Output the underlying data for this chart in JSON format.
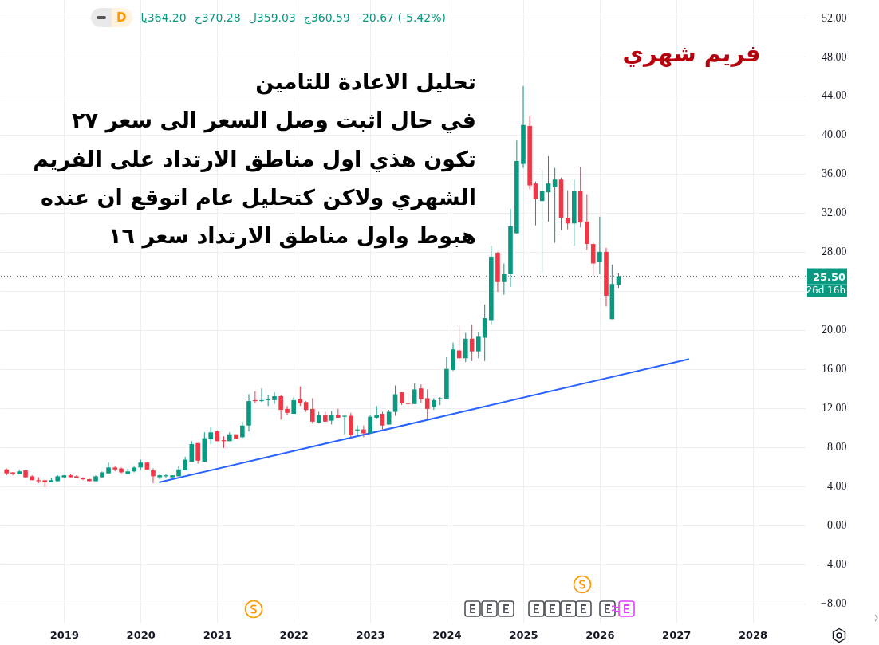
{
  "chart_data": {
    "type": "candlestick",
    "title": "فريم شهري",
    "subtitle": "تحليل الاعادة للتامين\nفي حال اثبت وصل السعر الى سعر ٢٧\nتكون هذي اول مناطق الارتداد على الفريم\nالشهري ولاكن كتحليل عام اتوقع ان عنده\nهبوط واول مناطق الارتداد سعر ١٦",
    "annotations": [
      "D",
      "364.20يا",
      "370.28ح",
      "359.03ل",
      "360.59ج",
      "-20.67 (-5.42%)",
      "26d 16h"
    ],
    "series": [
      {
        "type": "line",
        "color": "#2962ff",
        "x": [
          "2020-04",
          "2027-03"
        ],
        "values": [
          4.4,
          17.0
        ]
      },
      {
        "type": "candlestick",
        "x": [
          "2018-04",
          "2018-05",
          "2018-06",
          "2018-07",
          "2018-08",
          "2018-09",
          "2018-10",
          "2018-11",
          "2018-12",
          "2019-01",
          "2019-02",
          "2019-03",
          "2019-04",
          "2019-05",
          "2019-06",
          "2019-07",
          "2019-08",
          "2019-09",
          "2019-10",
          "2019-11",
          "2019-12",
          "2020-01",
          "2020-02",
          "2020-03",
          "2020-04",
          "2020-05",
          "2020-06",
          "2020-07",
          "2020-08",
          "2020-09",
          "2020-10",
          "2020-11",
          "2020-12",
          "2021-01",
          "2021-02",
          "2021-03",
          "2021-04",
          "2021-05",
          "2021-06",
          "2021-07",
          "2021-08",
          "2021-09",
          "2021-10",
          "2021-11",
          "2021-12",
          "2022-01",
          "2022-02",
          "2022-03",
          "2022-04",
          "2022-05",
          "2022-06",
          "2022-07",
          "2022-08",
          "2022-09",
          "2022-10",
          "2022-11",
          "2022-12",
          "2023-01",
          "2023-02",
          "2023-03",
          "2023-04",
          "2023-05",
          "2023-06",
          "2023-07",
          "2023-08",
          "2023-09",
          "2023-10",
          "2023-11",
          "2023-12",
          "2024-01",
          "2024-02",
          "2024-03",
          "2024-04",
          "2024-05",
          "2024-06",
          "2024-07",
          "2024-08",
          "2024-09",
          "2024-10",
          "2024-11",
          "2024-12",
          "2025-01",
          "2025-02",
          "2025-03",
          "2025-04",
          "2025-05",
          "2025-06",
          "2025-07",
          "2025-08",
          "2025-09",
          "2025-10",
          "2025-11",
          "2025-12",
          "2026-01",
          "2026-02",
          "2026-03",
          "2026-04"
        ],
        "ohlc": [
          [
            5.7,
            5.8,
            5.1,
            5.3
          ],
          [
            5.4,
            5.4,
            5.1,
            5.2
          ],
          [
            5.2,
            5.7,
            5.2,
            5.5
          ],
          [
            5.6,
            5.6,
            4.8,
            4.9
          ],
          [
            5.0,
            5.1,
            4.6,
            4.6
          ],
          [
            4.6,
            4.9,
            4.3,
            4.5
          ],
          [
            4.6,
            4.6,
            3.9,
            4.4
          ],
          [
            4.4,
            4.8,
            4.4,
            4.6
          ],
          [
            4.5,
            5.1,
            4.5,
            5.0
          ],
          [
            4.9,
            5.1,
            4.8,
            5.1
          ],
          [
            5.1,
            5.2,
            4.9,
            4.9
          ],
          [
            5.0,
            5.1,
            4.8,
            4.8
          ],
          [
            4.8,
            4.9,
            4.6,
            4.7
          ],
          [
            4.7,
            4.8,
            4.4,
            4.5
          ],
          [
            4.5,
            5.1,
            4.5,
            5.0
          ],
          [
            4.9,
            5.5,
            4.9,
            5.4
          ],
          [
            5.3,
            6.4,
            5.3,
            5.9
          ],
          [
            5.9,
            6.1,
            5.5,
            5.7
          ],
          [
            5.8,
            5.9,
            5.3,
            5.4
          ],
          [
            5.2,
            5.8,
            5.2,
            5.5
          ],
          [
            5.5,
            6.0,
            5.4,
            5.9
          ],
          [
            5.9,
            6.7,
            5.6,
            6.4
          ],
          [
            6.4,
            6.4,
            5.7,
            5.7
          ],
          [
            5.6,
            5.8,
            4.3,
            5.0
          ],
          [
            4.9,
            5.2,
            4.7,
            5.1
          ],
          [
            5.0,
            5.2,
            4.8,
            5.1
          ],
          [
            4.9,
            5.1,
            4.9,
            5.1
          ],
          [
            5.0,
            6.1,
            5.0,
            5.7
          ],
          [
            5.6,
            7.0,
            5.6,
            6.7
          ],
          [
            6.5,
            8.6,
            6.5,
            8.3
          ],
          [
            8.4,
            8.4,
            6.3,
            6.6
          ],
          [
            6.5,
            9.5,
            6.5,
            8.9
          ],
          [
            8.8,
            10.0,
            8.3,
            9.5
          ],
          [
            9.6,
            9.7,
            8.6,
            8.6
          ],
          [
            8.7,
            9.1,
            7.9,
            8.6
          ],
          [
            8.6,
            9.5,
            8.6,
            9.3
          ],
          [
            9.3,
            9.3,
            8.8,
            8.8
          ],
          [
            9.0,
            10.6,
            8.9,
            10.2
          ],
          [
            10.2,
            13.4,
            9.6,
            12.7
          ],
          [
            12.8,
            13.7,
            12.5,
            12.7
          ],
          [
            12.7,
            14.0,
            12.6,
            12.8
          ],
          [
            12.8,
            13.3,
            12.2,
            12.9
          ],
          [
            12.8,
            13.6,
            12.4,
            13.2
          ],
          [
            13.2,
            13.3,
            10.8,
            11.8
          ],
          [
            11.9,
            12.2,
            11.3,
            11.5
          ],
          [
            11.4,
            13.1,
            11.4,
            12.8
          ],
          [
            12.9,
            14.2,
            12.2,
            12.5
          ],
          [
            12.6,
            12.7,
            11.6,
            11.8
          ],
          [
            11.9,
            13.0,
            10.4,
            10.6
          ],
          [
            10.5,
            11.6,
            10.4,
            11.3
          ],
          [
            11.3,
            11.6,
            10.6,
            10.6
          ],
          [
            10.7,
            11.7,
            10.3,
            11.3
          ],
          [
            11.3,
            11.9,
            11.0,
            11.0
          ],
          [
            11.1,
            11.2,
            9.3,
            11.2
          ],
          [
            11.2,
            11.5,
            9.0,
            9.2
          ],
          [
            9.7,
            10.2,
            9.1,
            9.8
          ],
          [
            9.8,
            10.2,
            9.0,
            9.4
          ],
          [
            9.4,
            11.3,
            9.4,
            11.1
          ],
          [
            11.0,
            12.2,
            10.9,
            11.3
          ],
          [
            11.4,
            11.6,
            9.8,
            10.2
          ],
          [
            10.3,
            11.8,
            10.3,
            11.6
          ],
          [
            11.6,
            14.3,
            11.2,
            13.4
          ],
          [
            13.6,
            13.6,
            12.3,
            12.5
          ],
          [
            12.5,
            13.9,
            12.0,
            12.4
          ],
          [
            12.4,
            14.5,
            12.4,
            13.9
          ],
          [
            14.0,
            14.4,
            12.5,
            12.9
          ],
          [
            13.0,
            13.9,
            10.9,
            11.9
          ],
          [
            12.1,
            13.0,
            11.8,
            12.8
          ],
          [
            12.9,
            13.1,
            12.3,
            13.0
          ],
          [
            12.9,
            17.2,
            12.9,
            16.0
          ],
          [
            15.9,
            18.7,
            15.8,
            18.0
          ],
          [
            17.9,
            20.4,
            16.8,
            17.1
          ],
          [
            17.1,
            19.7,
            16.7,
            19.1
          ],
          [
            19.1,
            20.5,
            16.8,
            17.8
          ],
          [
            17.8,
            19.8,
            17.1,
            19.3
          ],
          [
            19.2,
            22.6,
            16.8,
            21.2
          ],
          [
            21.0,
            28.6,
            20.5,
            27.5
          ],
          [
            27.9,
            28.0,
            23.9,
            24.9
          ],
          [
            24.9,
            26.8,
            23.6,
            25.7
          ],
          [
            25.7,
            32.4,
            24.4,
            30.6
          ],
          [
            29.9,
            39.4,
            29.9,
            37.3
          ],
          [
            37.0,
            45.0,
            36.6,
            41.0
          ],
          [
            40.9,
            41.9,
            34.4,
            34.8
          ],
          [
            35.0,
            35.2,
            30.7,
            33.4
          ],
          [
            33.2,
            36.4,
            25.9,
            34.2
          ],
          [
            34.1,
            37.8,
            31.1,
            35.0
          ],
          [
            34.6,
            36.6,
            28.9,
            35.4
          ],
          [
            35.4,
            35.6,
            30.2,
            31.5
          ],
          [
            31.5,
            34.3,
            30.3,
            30.9
          ],
          [
            30.9,
            35.4,
            28.6,
            34.2
          ],
          [
            34.2,
            36.7,
            30.5,
            31.0
          ],
          [
            31.1,
            33.9,
            28.2,
            28.8
          ],
          [
            28.8,
            29.0,
            25.6,
            26.8
          ],
          [
            27.0,
            31.6,
            25.7,
            28.0
          ],
          [
            28.0,
            28.4,
            22.4,
            23.5
          ],
          [
            21.1,
            26.7,
            21.1,
            24.7
          ],
          [
            24.6,
            25.8,
            24.3,
            25.5
          ]
        ],
        "colors": [
          "#f23645",
          "#f23645",
          "#089981",
          "#f23645",
          "#f23645",
          "#f23645",
          "#f23645",
          "#089981",
          "#089981",
          "#089981",
          "#f23645",
          "#f23645",
          "#f23645",
          "#f23645",
          "#089981",
          "#089981",
          "#089981",
          "#f23645",
          "#f23645",
          "#089981",
          "#089981",
          "#089981",
          "#f23645",
          "#f23645",
          "#089981",
          "#089981",
          "#089981",
          "#089981",
          "#089981",
          "#089981",
          "#f23645",
          "#089981",
          "#089981",
          "#f23645",
          "#f23645",
          "#089981",
          "#f23645",
          "#089981",
          "#089981",
          "#f23645",
          "#089981",
          "#089981",
          "#089981",
          "#f23645",
          "#f23645",
          "#089981",
          "#f23645",
          "#f23645",
          "#f23645",
          "#089981",
          "#f23645",
          "#089981",
          "#f23645",
          "#089981",
          "#f23645",
          "#089981",
          "#f23645",
          "#089981",
          "#089981",
          "#f23645",
          "#089981",
          "#089981",
          "#f23645",
          "#f23645",
          "#089981",
          "#f23645",
          "#f23645",
          "#089981",
          "#089981",
          "#089981",
          "#089981",
          "#f23645",
          "#089981",
          "#f23645",
          "#089981",
          "#089981",
          "#089981",
          "#f23645",
          "#089981",
          "#089981",
          "#089981",
          "#089981",
          "#f23645",
          "#f23645",
          "#089981",
          "#089981",
          "#089981",
          "#f23645",
          "#f23645",
          "#089981",
          "#f23645",
          "#f23645",
          "#f23645",
          "#089981",
          "#f23645",
          "#089981",
          "#089981"
        ]
      }
    ],
    "xlim": [
      "2018-03-20",
      "2028-08-22"
    ],
    "xticks": [
      "2019",
      "2020",
      "2021",
      "2022",
      "2023",
      "2024",
      "2025",
      "2026",
      "2027",
      "2028"
    ],
    "ylim": [
      -10,
      53.8
    ],
    "yticks": [
      {
        "value": -8,
        "label": "−8.00"
      },
      {
        "value": -4,
        "label": "−4.00"
      },
      {
        "value": 0,
        "label": "0.00"
      },
      {
        "value": 4,
        "label": "4.00"
      },
      {
        "value": 8,
        "label": "8.00"
      },
      {
        "value": 12,
        "label": "12.00"
      },
      {
        "value": 16,
        "label": "16.00"
      },
      {
        "value": 20,
        "label": "20.00"
      },
      {
        "value": 24,
        "label": null
      },
      {
        "value": 28,
        "label": "28.00"
      },
      {
        "value": 32,
        "label": "32.00"
      },
      {
        "value": 36,
        "label": "36.00"
      },
      {
        "value": 40,
        "label": "40.00"
      },
      {
        "value": 44,
        "label": "44.00"
      },
      {
        "value": 48,
        "label": "48.00"
      },
      {
        "value": 52,
        "label": "52.00"
      }
    ],
    "grid": true,
    "ref_lines": [
      {
        "axis": "y",
        "value": 25.5,
        "label": "25.50",
        "color": "#089981",
        "line_style": "dotted"
      }
    ]
  }
}
